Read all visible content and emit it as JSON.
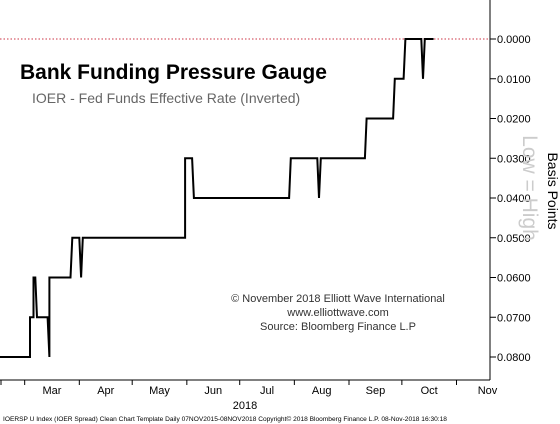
{
  "chart_data": {
    "type": "line",
    "title": "Bank Funding Pressure Gauge",
    "subtitle": "IOER - Fed Funds Effective Rate (Inverted)",
    "ylabel": "Basis Points",
    "watermark": "Low = High",
    "xlabel": "2018",
    "copyright_lines": [
      "© November 2018 Elliott Wave International",
      "www.elliottwave.com",
      "Source: Bloomberg Finance L.P"
    ],
    "footer": "IOERSP U Index (IOER Spread) Clean Chart Template  Daily 07NOV2015-08NOV2018  Copyright© 2018 Bloomberg Finance L.P.  08-Nov-2018 16:30:18",
    "y_inverted": true,
    "ylim": [
      0.0,
      0.085
    ],
    "y_ticks": [
      0.0,
      0.01,
      0.02,
      0.03,
      0.04,
      0.05,
      0.06,
      0.07,
      0.08
    ],
    "y_tick_labels": [
      "0.0000",
      "0.0100",
      "0.0200",
      "0.0300",
      "0.0400",
      "0.0500",
      "0.0600",
      "0.0700",
      "0.0800"
    ],
    "reference_line": {
      "y": 0.0,
      "style": "dotted",
      "color": "#cc3344"
    },
    "x_range": [
      "2018-02-15",
      "2018-11-20"
    ],
    "x_ticks": [
      {
        "label": "Mar",
        "date": "2018-03-01"
      },
      {
        "label": "Apr",
        "date": "2018-04-01"
      },
      {
        "label": "May",
        "date": "2018-05-01"
      },
      {
        "label": "Jun",
        "date": "2018-06-01"
      },
      {
        "label": "Jul",
        "date": "2018-07-01"
      },
      {
        "label": "Aug",
        "date": "2018-08-01"
      },
      {
        "label": "Sep",
        "date": "2018-09-01"
      },
      {
        "label": "Oct",
        "date": "2018-10-01"
      },
      {
        "label": "Nov",
        "date": "2018-11-01"
      }
    ],
    "series": [
      {
        "color": "#000000",
        "points": [
          [
            "2018-02-15",
            0.08
          ],
          [
            "2018-03-04",
            0.08
          ],
          [
            "2018-03-04",
            0.07
          ],
          [
            "2018-03-06",
            0.07
          ],
          [
            "2018-03-06",
            0.06
          ],
          [
            "2018-03-07",
            0.06
          ],
          [
            "2018-03-08",
            0.07
          ],
          [
            "2018-03-14",
            0.07
          ],
          [
            "2018-03-15",
            0.08
          ],
          [
            "2018-03-15",
            0.06
          ],
          [
            "2018-03-27",
            0.06
          ],
          [
            "2018-03-28",
            0.05
          ],
          [
            "2018-04-01",
            0.05
          ],
          [
            "2018-04-02",
            0.06
          ],
          [
            "2018-04-03",
            0.05
          ],
          [
            "2018-05-31",
            0.05
          ],
          [
            "2018-05-31",
            0.03
          ],
          [
            "2018-06-04",
            0.03
          ],
          [
            "2018-06-05",
            0.04
          ],
          [
            "2018-07-29",
            0.04
          ],
          [
            "2018-07-30",
            0.03
          ],
          [
            "2018-08-14",
            0.03
          ],
          [
            "2018-08-15",
            0.04
          ],
          [
            "2018-08-16",
            0.03
          ],
          [
            "2018-09-10",
            0.03
          ],
          [
            "2018-09-11",
            0.02
          ],
          [
            "2018-09-26",
            0.02
          ],
          [
            "2018-09-27",
            0.01
          ],
          [
            "2018-10-02",
            0.01
          ],
          [
            "2018-10-03",
            0.0
          ],
          [
            "2018-10-12",
            0.0
          ],
          [
            "2018-10-13",
            0.01
          ],
          [
            "2018-10-14",
            0.0
          ],
          [
            "2018-10-19",
            0.0
          ]
        ]
      }
    ]
  }
}
